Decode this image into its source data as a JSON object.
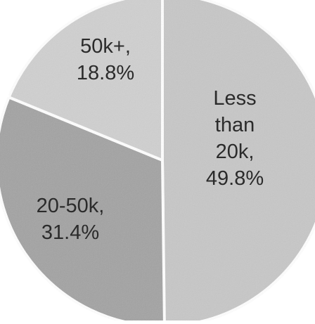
{
  "chart_data": {
    "type": "pie",
    "title": "",
    "slices": [
      {
        "label_lines": [
          "Less",
          "than",
          "20k,",
          "49.8%"
        ],
        "category": "Less than 20k",
        "value": 49.8,
        "color": "#c7c7c7"
      },
      {
        "label_lines": [
          "20-50k,",
          "31.4%"
        ],
        "category": "20-50k",
        "value": 31.4,
        "color": "#a3a3a3"
      },
      {
        "label_lines": [
          "50k+,",
          "18.8%"
        ],
        "category": "50k+",
        "value": 18.8,
        "color": "#d0d0d0"
      }
    ],
    "slice_border_color": "#ffffff",
    "legend": "none"
  }
}
